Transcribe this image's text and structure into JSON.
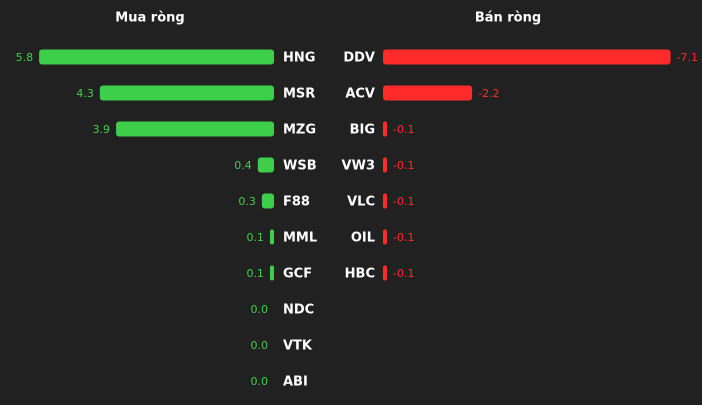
{
  "chart_data": [
    {
      "type": "bar",
      "title": "Mua ròng",
      "color": "#3ecf4a",
      "categories": [
        "HNG",
        "MSR",
        "MZG",
        "WSB",
        "F88",
        "MML",
        "GCF",
        "NDC",
        "VTK",
        "ABI"
      ],
      "values": [
        5.8,
        4.3,
        3.9,
        0.4,
        0.3,
        0.1,
        0.1,
        0.0,
        0.0,
        0.0
      ],
      "value_labels": [
        "5.8",
        "4.3",
        "3.9",
        "0.4",
        "0.3",
        "0.1",
        "0.1",
        "0.0",
        "0.0",
        "0.0"
      ]
    },
    {
      "type": "bar",
      "title": "Bán ròng",
      "color": "#ff2b2b",
      "categories": [
        "DDV",
        "ACV",
        "BIG",
        "VW3",
        "VLC",
        "OIL",
        "HBC"
      ],
      "values": [
        -7.1,
        -2.2,
        -0.1,
        -0.1,
        -0.1,
        -0.1,
        -0.1
      ],
      "value_labels": [
        "-7.1",
        "-2.2",
        "-0.1",
        "-0.1",
        "-0.1",
        "-0.1",
        "-0.1"
      ]
    }
  ]
}
